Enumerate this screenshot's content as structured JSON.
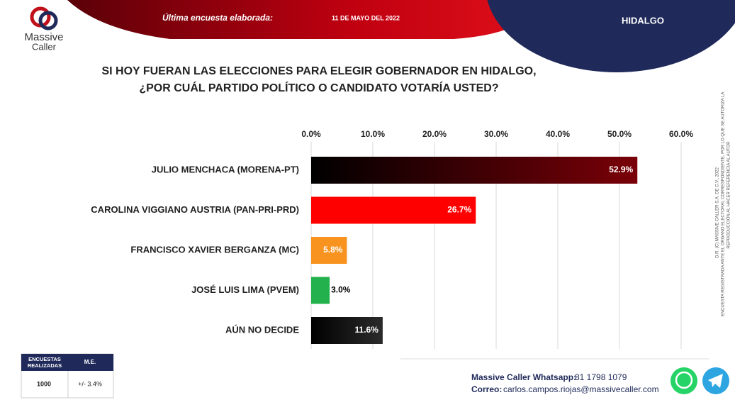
{
  "header": {
    "survey_label": "Última encuesta elaborada:",
    "survey_date": "11 DE MAYO DEL 2022",
    "region": "HIDALGO",
    "logo_top": "Massive",
    "logo_bottom": "Caller"
  },
  "chart_data": {
    "type": "hbar",
    "title": [
      "SI HOY FUERAN LAS ELECCIONES PARA ELEGIR GOBERNADOR EN HIDALGO,",
      "¿POR CUÁL PARTIDO POLÍTICO O CANDIDATO VOTARÍA USTED?"
    ],
    "categories": [
      "JULIO MENCHACA (MORENA-PT)",
      "CAROLINA VIGGIANO AUSTRIA (PAN-PRI-PRD)",
      "FRANCISCO XAVIER BERGANZA (MC)",
      "JOSÉ LUIS LIMA (PVEM)",
      "AÚN NO DECIDE"
    ],
    "values": [
      52.9,
      26.7,
      5.8,
      3.0,
      11.6
    ],
    "value_labels": [
      "52.9%",
      "26.7%",
      "5.8%",
      "3.0%",
      "11.6%"
    ],
    "colors": [
      "#7a0008",
      "#ff0000",
      "#f7931e",
      "#22b14c",
      "#2b2b2b"
    ],
    "gradient": [
      true,
      false,
      false,
      false,
      true
    ],
    "xlim": [
      0,
      60
    ],
    "xticks": [
      {
        "value": 0,
        "label": "0.0%"
      },
      {
        "value": 10,
        "label": "10.0%"
      },
      {
        "value": 20,
        "label": "20.0%"
      },
      {
        "value": 30,
        "label": "30.0%"
      },
      {
        "value": 40,
        "label": "40.0%"
      },
      {
        "value": 50,
        "label": "50.0%"
      },
      {
        "value": 60,
        "label": "60.0%"
      }
    ],
    "grid": true
  },
  "table": {
    "headers": [
      "ENCUESTAS REALIZADAS",
      "M.E."
    ],
    "rows": [
      [
        "1000",
        "+/- 3.4%"
      ]
    ]
  },
  "contact": {
    "whatsapp_label": "Massive Caller Whatsapp:",
    "whatsapp": "81 1798 1079",
    "email_label": "Correo:",
    "email": "carlos.campos.riojas@massivecaller.com"
  },
  "side_note": [
    "D.R. (C) MASSIVE CALLER S.A. DE C.V., 2022",
    "ENCUESTA REGISTRADA ANTE EL ORGANO ELECTORAL CORRESPONDIENTE, POR LO QUE SE AUTORIZA LA",
    "REPRODUCCIÓN AL HACER REFERENCIA AL AUTOR"
  ]
}
